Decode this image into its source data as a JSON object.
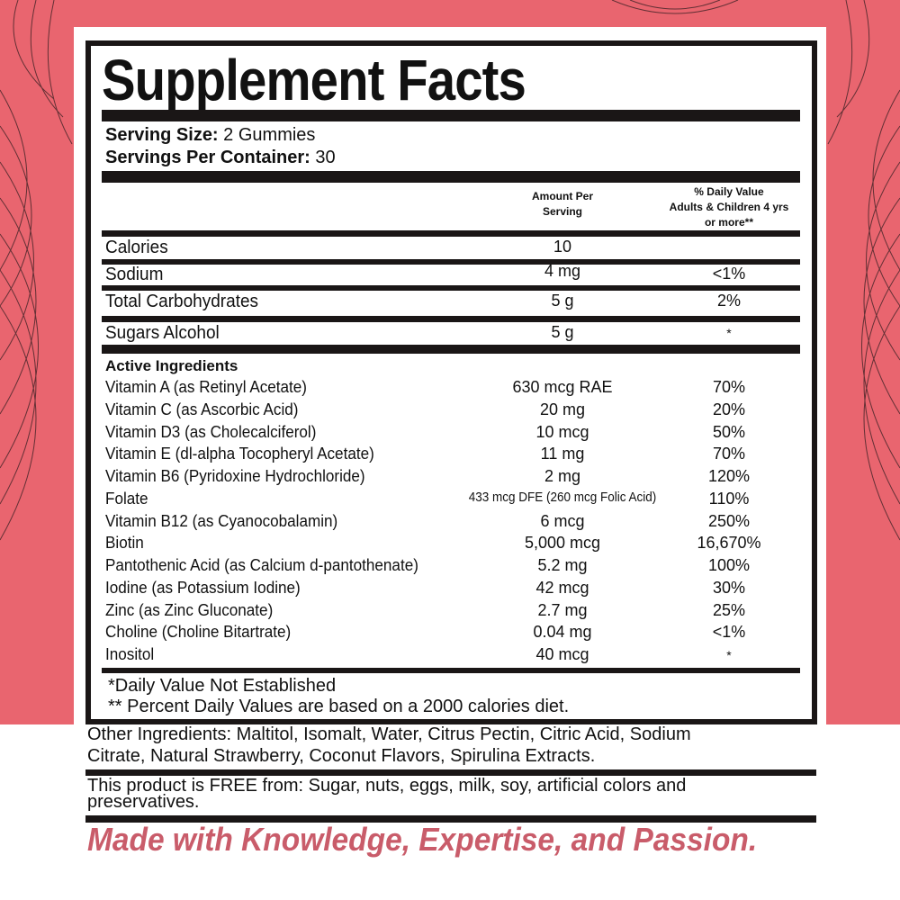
{
  "title": "Supplement Facts",
  "serving": {
    "size_label": "Serving Size:",
    "size_value": "2 Gummies",
    "per_container_label": "Servings Per Container:",
    "per_container_value": "30"
  },
  "columns": {
    "amount_line1": "Amount Per",
    "amount_line2": "Serving",
    "dv_line1": "% Daily Value",
    "dv_line2": "Adults & Children 4 yrs",
    "dv_line3": "or more**"
  },
  "nutrients": [
    {
      "name": "Calories",
      "amount": "10",
      "dv": ""
    },
    {
      "name": "Sodium",
      "amount": "4 mg",
      "dv": "<1%"
    },
    {
      "name": "Total Carbohydrates",
      "amount": "5 g",
      "dv": "2%"
    },
    {
      "name": "Sugars Alcohol",
      "amount": "5 g",
      "dv": "*"
    }
  ],
  "active_heading": "Active Ingredients",
  "ingredients": [
    {
      "name": "Vitamin A (as Retinyl Acetate)",
      "amount": "630 mcg RAE",
      "dv": "70%"
    },
    {
      "name": "Vitamin C (as Ascorbic Acid)",
      "amount": "20 mg",
      "dv": "20%"
    },
    {
      "name": "Vitamin D3 (as Cholecalciferol)",
      "amount": "10 mcg",
      "dv": "50%"
    },
    {
      "name": "Vitamin E (dl-alpha Tocopheryl Acetate)",
      "amount": "11 mg",
      "dv": "70%"
    },
    {
      "name": "Vitamin B6 (Pyridoxine Hydrochloride)",
      "amount": "2 mg",
      "dv": "120%"
    },
    {
      "name": "Folate",
      "amount": "433 mcg DFE (260 mcg Folic Acid)",
      "dv": "110%"
    },
    {
      "name": "Vitamin B12 (as Cyanocobalamin)",
      "amount": "6 mcg",
      "dv": "250%"
    },
    {
      "name": "Biotin",
      "amount": "5,000 mcg",
      "dv": "16,670%"
    },
    {
      "name": "Pantothenic Acid (as Calcium d-pantothenate)",
      "amount": "5.2 mg",
      "dv": "100%"
    },
    {
      "name": "Iodine (as Potassium Iodine)",
      "amount": "42 mcg",
      "dv": "30%"
    },
    {
      "name": "Zinc (as Zinc Gluconate)",
      "amount": "2.7 mg",
      "dv": "25%"
    },
    {
      "name": "Choline (Choline Bitartrate)",
      "amount": "0.04 mg",
      "dv": "<1%"
    },
    {
      "name": "Inositol",
      "amount": "40 mcg",
      "dv": "*"
    }
  ],
  "footnotes": [
    "*Daily Value Not Established",
    "** Percent Daily Values are based on a 2000 calories diet."
  ],
  "other_ingredients_line1": "Other Ingredients: Maltitol, Isomalt, Water, Citrus Pectin, Citric Acid, Sodium",
  "other_ingredients_line2": "Citrate, Natural Strawberry, Coconut Flavors, Spirulina Extracts.",
  "free_from_line1": "This product is FREE from: Sugar, nuts, eggs, milk, soy, artificial colors and",
  "free_from_line2": "preservatives.",
  "slogan": "Made with Knowledge, Expertise, and Passion.",
  "colors": {
    "background_pink": "#e9656f",
    "slogan": "#c95c6a",
    "rule": "#1a1616"
  }
}
